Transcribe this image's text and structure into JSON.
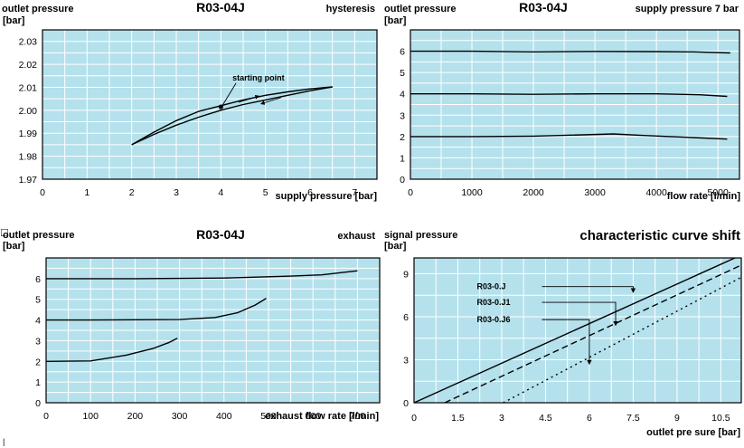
{
  "colors": {
    "plot_bg": "#b4e1ec",
    "grid": "#ffffff",
    "ink": "#000000"
  },
  "marks": [
    "□",
    "|"
  ],
  "chart_data": [
    {
      "type": "line",
      "title": "R03-04J",
      "corner_note": "hysteresis",
      "ylabel": "outlet pressure",
      "yunit": "[bar]",
      "xlabel": "supply pressure [bar]",
      "xlim": [
        0,
        7.5
      ],
      "ylim": [
        1.97,
        2.035
      ],
      "xticks": [
        0,
        1,
        2,
        3,
        4,
        5,
        6,
        7
      ],
      "xtick_labels": [
        "0",
        "1",
        "2",
        "3",
        "4",
        "5",
        "6",
        "7"
      ],
      "yticks": [
        1.97,
        1.98,
        1.99,
        2.0,
        2.01,
        2.02,
        2.03
      ],
      "ytick_labels": [
        "1.97",
        "1.98",
        "1.99",
        "2.00",
        "2.01",
        "2.02",
        "2.03"
      ],
      "grid": true,
      "series": [
        {
          "points": [
            [
              2.0,
              1.985
            ],
            [
              2.5,
              1.9905
            ],
            [
              3.0,
              1.9955
            ],
            [
              3.5,
              1.9995
            ],
            [
              4.0,
              2.002
            ],
            [
              4.5,
              2.0045
            ],
            [
              5.0,
              2.0065
            ],
            [
              5.5,
              2.008
            ],
            [
              6.0,
              2.0093
            ],
            [
              6.5,
              2.0102
            ]
          ]
        },
        {
          "points": [
            [
              2.0,
              1.985
            ],
            [
              2.5,
              1.9895
            ],
            [
              3.0,
              1.9935
            ],
            [
              3.5,
              1.997
            ],
            [
              4.0,
              2.0
            ],
            [
              4.5,
              2.0025
            ],
            [
              5.0,
              2.0045
            ],
            [
              5.5,
              2.0065
            ],
            [
              6.0,
              2.0085
            ],
            [
              6.5,
              2.0102
            ]
          ]
        }
      ],
      "annotations": [
        {
          "text": "starting point",
          "point": [
            4.0,
            2.0015
          ],
          "label_at": [
            4.3,
            2.013
          ]
        }
      ],
      "arrows": [
        {
          "from": [
            4.4,
            2.0035
          ],
          "to": [
            4.85,
            2.0062
          ]
        },
        {
          "from": [
            5.35,
            2.0055
          ],
          "to": [
            4.9,
            2.0028
          ]
        }
      ]
    },
    {
      "type": "line",
      "title": "R03-04J",
      "corner_note": "supply pressure 7 bar",
      "ylabel": "outlet pressure",
      "yunit": "[bar]",
      "xlabel": "flow rate [l/min]",
      "xlim": [
        0,
        5350
      ],
      "ylim": [
        0,
        7
      ],
      "xticks": [
        0,
        1000,
        2000,
        3000,
        4000,
        5000
      ],
      "xtick_labels": [
        "0",
        "1000",
        "2000",
        "3000",
        "4000",
        "5000"
      ],
      "yticks": [
        0,
        1,
        2,
        3,
        4,
        5,
        6
      ],
      "ytick_labels": [
        "0",
        "1",
        "2",
        "3",
        "4",
        "5",
        "6"
      ],
      "grid": true,
      "series": [
        {
          "points": [
            [
              0,
              6.0
            ],
            [
              1000,
              6.0
            ],
            [
              2000,
              5.97
            ],
            [
              3000,
              5.99
            ],
            [
              4000,
              5.98
            ],
            [
              4600,
              5.97
            ],
            [
              5200,
              5.92
            ]
          ]
        },
        {
          "points": [
            [
              0,
              4.0
            ],
            [
              1000,
              4.0
            ],
            [
              2000,
              3.98
            ],
            [
              3000,
              4.0
            ],
            [
              4000,
              4.0
            ],
            [
              4700,
              3.96
            ],
            [
              5150,
              3.88
            ]
          ]
        },
        {
          "points": [
            [
              0,
              2.0
            ],
            [
              1000,
              2.0
            ],
            [
              2000,
              2.02
            ],
            [
              2800,
              2.08
            ],
            [
              3300,
              2.12
            ],
            [
              3800,
              2.05
            ],
            [
              4600,
              1.95
            ],
            [
              5150,
              1.88
            ]
          ]
        }
      ]
    },
    {
      "type": "line",
      "title": "R03-04J",
      "corner_note": "exhaust",
      "ylabel": "outlet pressure",
      "yunit": "[bar]",
      "xlabel": "exhaust flow rate [l/min]",
      "xlim": [
        0,
        750
      ],
      "ylim": [
        0,
        7
      ],
      "xticks": [
        0,
        100,
        200,
        300,
        400,
        500,
        600,
        700
      ],
      "xtick_labels": [
        "0",
        "100",
        "200",
        "300",
        "400",
        "500",
        "600",
        "700"
      ],
      "yticks": [
        0,
        1,
        2,
        3,
        4,
        5,
        6
      ],
      "ytick_labels": [
        "0",
        "1",
        "2",
        "3",
        "4",
        "5",
        "6"
      ],
      "grid": true,
      "series": [
        {
          "points": [
            [
              0,
              6.0
            ],
            [
              200,
              6.0
            ],
            [
              400,
              6.03
            ],
            [
              550,
              6.12
            ],
            [
              620,
              6.18
            ],
            [
              700,
              6.38
            ]
          ]
        },
        {
          "points": [
            [
              0,
              4.0
            ],
            [
              100,
              4.0
            ],
            [
              300,
              4.02
            ],
            [
              380,
              4.12
            ],
            [
              430,
              4.35
            ],
            [
              470,
              4.72
            ],
            [
              495,
              5.05
            ]
          ]
        },
        {
          "points": [
            [
              0,
              2.0
            ],
            [
              100,
              2.02
            ],
            [
              180,
              2.3
            ],
            [
              240,
              2.62
            ],
            [
              275,
              2.9
            ],
            [
              295,
              3.12
            ]
          ]
        }
      ]
    },
    {
      "type": "line",
      "title": "characteristic curve shift",
      "ylabel": "signal pressure",
      "yunit": "[bar]",
      "xlabel": "outlet pre  sure [bar]",
      "xlim": [
        0,
        11.2
      ],
      "ylim": [
        0,
        10.1
      ],
      "xticks": [
        0,
        1.5,
        3,
        4.5,
        6,
        7.5,
        9,
        10.5
      ],
      "xtick_labels": [
        "0",
        "1.5",
        "3",
        "4.5",
        "6",
        "7.5",
        "9",
        "10.5"
      ],
      "yticks": [
        0,
        3,
        6,
        9
      ],
      "ytick_labels": [
        "0",
        "3",
        "6",
        "9"
      ],
      "grid": true,
      "series": [
        {
          "name": "R03-0.J",
          "style": "solid",
          "points": [
            [
              0,
              0
            ],
            [
              11.2,
              10.3
            ]
          ]
        },
        {
          "name": "R03-0.J1",
          "style": "dashed",
          "points": [
            [
              1.05,
              0
            ],
            [
              11.2,
              9.6
            ]
          ]
        },
        {
          "name": "R03-0.J6",
          "style": "dotted",
          "points": [
            [
              3.05,
              0
            ],
            [
              11.2,
              8.75
            ]
          ]
        }
      ],
      "series_labels": [
        {
          "text": "R03-0.J",
          "label_at": [
            2.15,
            8.1
          ],
          "knee_x": 7.5,
          "tip": [
            7.5,
            7.7
          ]
        },
        {
          "text": "R03-0.J1",
          "label_at": [
            2.15,
            7.0
          ],
          "knee_x": 6.9,
          "tip": [
            6.9,
            5.4
          ]
        },
        {
          "text": "R03-0.J6",
          "label_at": [
            2.15,
            5.8
          ],
          "knee_x": 6.0,
          "tip": [
            6.0,
            2.7
          ]
        }
      ]
    }
  ]
}
